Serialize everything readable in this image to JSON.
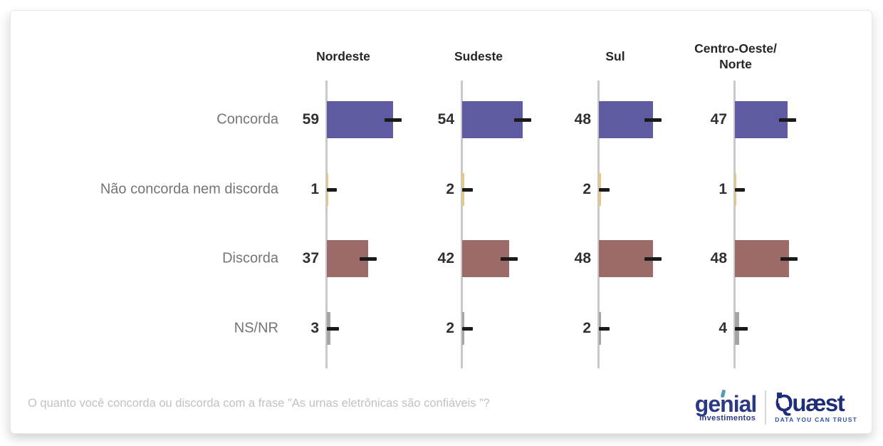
{
  "chart_data": {
    "type": "bar",
    "orientation": "horizontal",
    "categories": [
      "Concorda",
      "Não concorda nem discorda",
      "Discorda",
      "NS/NR"
    ],
    "series": [
      {
        "name": "Nordeste",
        "label_lines": [
          "Nordeste"
        ],
        "values": [
          59,
          1,
          37,
          3
        ]
      },
      {
        "name": "Sudeste",
        "label_lines": [
          "Sudeste"
        ],
        "values": [
          54,
          2,
          42,
          2
        ]
      },
      {
        "name": "Sul",
        "label_lines": [
          "Sul"
        ],
        "values": [
          48,
          2,
          48,
          2
        ]
      },
      {
        "name": "Centro-Oeste/Norte",
        "label_lines": [
          "Centro-Oeste/",
          "Norte"
        ],
        "values": [
          47,
          1,
          48,
          4
        ]
      }
    ],
    "row_colors": [
      "#5f5ba3",
      "#e8c87d",
      "#9c6b67",
      "#a5a5a5"
    ],
    "axis_color": "#c9c9c9",
    "marker_color": "#1a1a1a",
    "value_color": "#303030",
    "label_color": "#757575",
    "header_color": "#262626",
    "xlim": [
      0,
      100
    ],
    "legend": "none",
    "grid": "off"
  },
  "footer": {
    "question": "O quanto você concorda ou discorda com a frase \"As urnas eletrônicas são confiáveis ”?",
    "logos": {
      "genial": {
        "name": "genial",
        "sub": "investimentos"
      },
      "quaest": {
        "name": "Quæst",
        "tagline": "DATA YOU CAN TRUST"
      }
    }
  }
}
